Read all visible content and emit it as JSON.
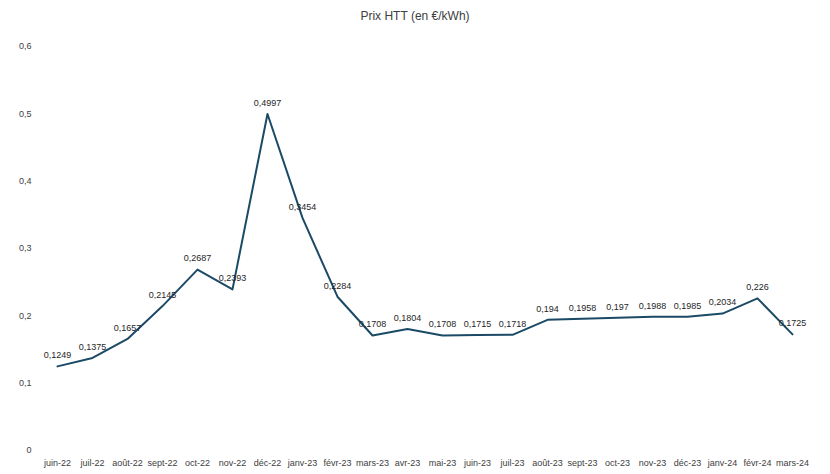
{
  "chart_data": {
    "type": "line",
    "title": "Prix HTT (en €/kWh)",
    "categories": [
      "juin-22",
      "juil-22",
      "août-22",
      "sept-22",
      "oct-22",
      "nov-22",
      "déc-22",
      "janv-23",
      "févr-23",
      "mars-23",
      "avr-23",
      "mai-23",
      "juin-23",
      "juil-23",
      "août-23",
      "sept-23",
      "oct-23",
      "nov-23",
      "déc-23",
      "janv-24",
      "févr-24",
      "mars-24"
    ],
    "values": [
      0.1249,
      0.1375,
      0.1657,
      0.2145,
      0.2687,
      0.2393,
      0.4997,
      0.3454,
      0.2284,
      0.1708,
      0.1804,
      0.1708,
      0.1715,
      0.1718,
      0.194,
      0.1958,
      0.197,
      0.1988,
      0.1985,
      0.2034,
      0.226,
      0.1725
    ],
    "value_labels": [
      "0,1249",
      "0,1375",
      "0,1657",
      "0,2145",
      "0,2687",
      "0,2393",
      "0,4997",
      "0,3454",
      "0,2284",
      "0,1708",
      "0,1804",
      "0,1708",
      "0,1715",
      "0,1718",
      "0,194",
      "0,1958",
      "0,197",
      "0,1988",
      "0,1985",
      "0,2034",
      "0,226",
      "0,1725"
    ],
    "color": "#1b4a66",
    "ylim": [
      0,
      0.6
    ],
    "yticks": [
      0,
      {
        "value": 0.1,
        "label": "0,1"
      },
      {
        "value": 0.2,
        "label": "0,2"
      },
      {
        "value": 0.3,
        "label": "0,3"
      },
      {
        "value": 0.4,
        "label": "0,4"
      },
      {
        "value": 0.5,
        "label": "0,5"
      },
      {
        "value": 0.6,
        "label": "0,6"
      }
    ],
    "grid": false,
    "data_labels": true
  }
}
